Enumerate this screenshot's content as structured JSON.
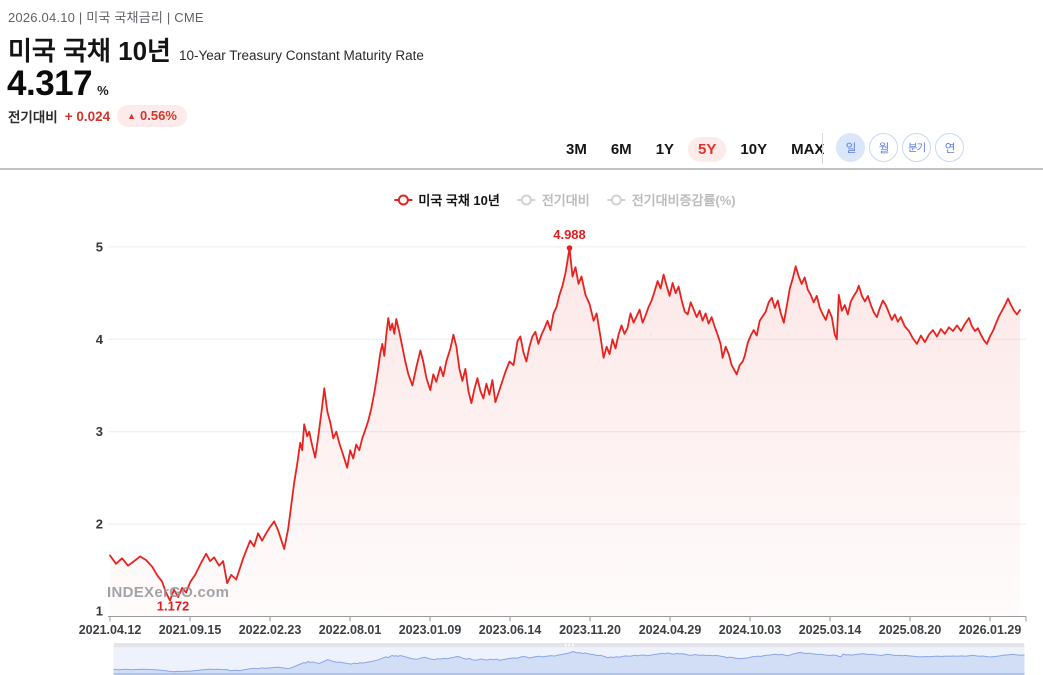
{
  "header": {
    "meta": "2026.04.10 | 미국 국채금리 | CME",
    "title": "미국 국채 10년",
    "subtitle": "10-Year Treasury Constant Maturity Rate",
    "value": "4.317",
    "unit": "%",
    "change_label": "전기대비",
    "change_delta": "+ 0.024",
    "up_arrow": "▲",
    "change_pct": "0.56%"
  },
  "toolbar": {
    "ranges": [
      "3M",
      "6M",
      "1Y",
      "5Y",
      "10Y",
      "MAX"
    ],
    "active_range": "5Y",
    "periods": [
      "일",
      "월",
      "분기",
      "연"
    ],
    "active_period": "일"
  },
  "legend": [
    {
      "label": "미국 국채 10년",
      "color": "#e8231f",
      "active": true
    },
    {
      "label": "전기대비",
      "color": "#d2d2d2",
      "active": false
    },
    {
      "label": "전기대비증감률(%)",
      "color": "#d2d2d2",
      "active": false
    }
  ],
  "watermark": "INDEXerGO.com",
  "chart_data": {
    "type": "line",
    "title": "미국 국채 10년 (10-Year Treasury Constant Maturity Rate), 5Y daily",
    "ylabel": "%",
    "ylim": [
      1,
      5.2
    ],
    "y_ticks": [
      1,
      2,
      3,
      4,
      5
    ],
    "grid": true,
    "legend_position": "top-center",
    "x_tick_labels": [
      "2021.04.12",
      "2021.09.15",
      "2022.02.23",
      "2022.08.01",
      "2023.01.09",
      "2023.06.14",
      "2023.11.20",
      "2024.04.29",
      "2024.10.03",
      "2025.03.14",
      "2025.08.20",
      "2026.01.29"
    ],
    "annotations": {
      "max": {
        "label": "4.988",
        "f": 0.5044,
        "v": 4.988,
        "dot": true
      },
      "min": {
        "label": "1.172",
        "f": 0.0659,
        "v": 1.172,
        "dot": false
      }
    },
    "line_color": "#e8231f",
    "area_top_color": "rgba(232,35,31,0.11)",
    "area_bottom_color": "rgba(232,35,31,0.015)",
    "series": [
      {
        "name": "미국 국채 10년",
        "points": [
          [
            0.0,
            1.66
          ],
          [
            0.0066,
            1.57
          ],
          [
            0.0132,
            1.63
          ],
          [
            0.0198,
            1.55
          ],
          [
            0.0264,
            1.6
          ],
          [
            0.033,
            1.65
          ],
          [
            0.0396,
            1.61
          ],
          [
            0.0462,
            1.54
          ],
          [
            0.0516,
            1.45
          ],
          [
            0.0571,
            1.38
          ],
          [
            0.0615,
            1.26
          ],
          [
            0.0659,
            1.172
          ],
          [
            0.0703,
            1.29
          ],
          [
            0.0747,
            1.21
          ],
          [
            0.0791,
            1.31
          ],
          [
            0.0835,
            1.26
          ],
          [
            0.0879,
            1.37
          ],
          [
            0.0934,
            1.45
          ],
          [
            0.1,
            1.58
          ],
          [
            0.1055,
            1.68
          ],
          [
            0.1099,
            1.6
          ],
          [
            0.1143,
            1.64
          ],
          [
            0.1198,
            1.55
          ],
          [
            0.1242,
            1.6
          ],
          [
            0.1286,
            1.36
          ],
          [
            0.133,
            1.45
          ],
          [
            0.1385,
            1.4
          ],
          [
            0.1462,
            1.63
          ],
          [
            0.1538,
            1.82
          ],
          [
            0.1582,
            1.76
          ],
          [
            0.1626,
            1.9
          ],
          [
            0.167,
            1.82
          ],
          [
            0.1714,
            1.9
          ],
          [
            0.1758,
            1.97
          ],
          [
            0.1802,
            2.03
          ],
          [
            0.1846,
            1.93
          ],
          [
            0.1879,
            1.83
          ],
          [
            0.1912,
            1.73
          ],
          [
            0.1956,
            1.95
          ],
          [
            0.1989,
            2.2
          ],
          [
            0.2022,
            2.45
          ],
          [
            0.2055,
            2.65
          ],
          [
            0.2088,
            2.88
          ],
          [
            0.211,
            2.8
          ],
          [
            0.2132,
            3.08
          ],
          [
            0.2165,
            2.95
          ],
          [
            0.2187,
            3.0
          ],
          [
            0.222,
            2.85
          ],
          [
            0.2253,
            2.72
          ],
          [
            0.2286,
            2.95
          ],
          [
            0.2319,
            3.2
          ],
          [
            0.2352,
            3.47
          ],
          [
            0.2385,
            3.22
          ],
          [
            0.2418,
            3.1
          ],
          [
            0.2451,
            2.93
          ],
          [
            0.2484,
            3.0
          ],
          [
            0.2516,
            2.88
          ],
          [
            0.2549,
            2.78
          ],
          [
            0.2582,
            2.68
          ],
          [
            0.2604,
            2.61
          ],
          [
            0.2637,
            2.8
          ],
          [
            0.267,
            2.71
          ],
          [
            0.2703,
            2.86
          ],
          [
            0.2736,
            2.8
          ],
          [
            0.2769,
            2.93
          ],
          [
            0.2802,
            3.02
          ],
          [
            0.2835,
            3.12
          ],
          [
            0.2868,
            3.25
          ],
          [
            0.2901,
            3.42
          ],
          [
            0.2934,
            3.62
          ],
          [
            0.2967,
            3.85
          ],
          [
            0.2989,
            3.95
          ],
          [
            0.3011,
            3.82
          ],
          [
            0.3033,
            4.05
          ],
          [
            0.3055,
            4.23
          ],
          [
            0.3077,
            4.1
          ],
          [
            0.3099,
            4.17
          ],
          [
            0.3121,
            4.06
          ],
          [
            0.3143,
            4.22
          ],
          [
            0.3176,
            4.08
          ],
          [
            0.3209,
            3.92
          ],
          [
            0.3242,
            3.76
          ],
          [
            0.3275,
            3.62
          ],
          [
            0.3319,
            3.5
          ],
          [
            0.3363,
            3.7
          ],
          [
            0.3407,
            3.88
          ],
          [
            0.344,
            3.75
          ],
          [
            0.3473,
            3.58
          ],
          [
            0.3516,
            3.45
          ],
          [
            0.3549,
            3.62
          ],
          [
            0.3582,
            3.54
          ],
          [
            0.3626,
            3.7
          ],
          [
            0.3659,
            3.6
          ],
          [
            0.3692,
            3.76
          ],
          [
            0.3736,
            3.9
          ],
          [
            0.3769,
            4.05
          ],
          [
            0.3802,
            3.92
          ],
          [
            0.3835,
            3.68
          ],
          [
            0.3868,
            3.55
          ],
          [
            0.3901,
            3.68
          ],
          [
            0.3934,
            3.44
          ],
          [
            0.3967,
            3.31
          ],
          [
            0.4,
            3.46
          ],
          [
            0.4033,
            3.58
          ],
          [
            0.4066,
            3.44
          ],
          [
            0.4099,
            3.36
          ],
          [
            0.4132,
            3.52
          ],
          [
            0.4165,
            3.4
          ],
          [
            0.4198,
            3.56
          ],
          [
            0.4231,
            3.32
          ],
          [
            0.4264,
            3.42
          ],
          [
            0.4297,
            3.52
          ],
          [
            0.4341,
            3.65
          ],
          [
            0.4385,
            3.76
          ],
          [
            0.4429,
            3.72
          ],
          [
            0.4473,
            3.98
          ],
          [
            0.4505,
            4.03
          ],
          [
            0.4538,
            3.86
          ],
          [
            0.4571,
            3.76
          ],
          [
            0.4604,
            3.92
          ],
          [
            0.4637,
            4.03
          ],
          [
            0.467,
            4.08
          ],
          [
            0.4703,
            3.95
          ],
          [
            0.4736,
            4.05
          ],
          [
            0.4769,
            4.12
          ],
          [
            0.4802,
            4.2
          ],
          [
            0.4835,
            4.1
          ],
          [
            0.4868,
            4.28
          ],
          [
            0.4901,
            4.35
          ],
          [
            0.4934,
            4.48
          ],
          [
            0.4967,
            4.58
          ],
          [
            0.5,
            4.72
          ],
          [
            0.5022,
            4.85
          ],
          [
            0.5044,
            4.988
          ],
          [
            0.5077,
            4.68
          ],
          [
            0.511,
            4.78
          ],
          [
            0.5143,
            4.6
          ],
          [
            0.5176,
            4.68
          ],
          [
            0.522,
            4.48
          ],
          [
            0.5264,
            4.38
          ],
          [
            0.5308,
            4.2
          ],
          [
            0.5341,
            4.28
          ],
          [
            0.5385,
            4.02
          ],
          [
            0.5418,
            3.8
          ],
          [
            0.5451,
            3.92
          ],
          [
            0.5484,
            3.84
          ],
          [
            0.5516,
            4.0
          ],
          [
            0.5549,
            3.9
          ],
          [
            0.5582,
            4.05
          ],
          [
            0.5615,
            4.15
          ],
          [
            0.5648,
            4.06
          ],
          [
            0.5681,
            4.12
          ],
          [
            0.5714,
            4.28
          ],
          [
            0.5747,
            4.18
          ],
          [
            0.578,
            4.25
          ],
          [
            0.5813,
            4.32
          ],
          [
            0.5846,
            4.18
          ],
          [
            0.5879,
            4.26
          ],
          [
            0.5912,
            4.35
          ],
          [
            0.5945,
            4.42
          ],
          [
            0.5978,
            4.52
          ],
          [
            0.6011,
            4.63
          ],
          [
            0.6044,
            4.55
          ],
          [
            0.6077,
            4.7
          ],
          [
            0.611,
            4.58
          ],
          [
            0.6143,
            4.47
          ],
          [
            0.6176,
            4.61
          ],
          [
            0.6209,
            4.5
          ],
          [
            0.6242,
            4.57
          ],
          [
            0.6275,
            4.42
          ],
          [
            0.6308,
            4.3
          ],
          [
            0.6341,
            4.27
          ],
          [
            0.6374,
            4.4
          ],
          [
            0.6407,
            4.32
          ],
          [
            0.644,
            4.24
          ],
          [
            0.6473,
            4.31
          ],
          [
            0.6505,
            4.2
          ],
          [
            0.6538,
            4.28
          ],
          [
            0.6571,
            4.17
          ],
          [
            0.6604,
            4.24
          ],
          [
            0.6637,
            4.14
          ],
          [
            0.667,
            4.05
          ],
          [
            0.6703,
            3.95
          ],
          [
            0.6725,
            3.8
          ],
          [
            0.6758,
            3.92
          ],
          [
            0.6791,
            3.84
          ],
          [
            0.6824,
            3.72
          ],
          [
            0.6857,
            3.66
          ],
          [
            0.6879,
            3.62
          ],
          [
            0.6912,
            3.72
          ],
          [
            0.6945,
            3.76
          ],
          [
            0.6967,
            3.82
          ],
          [
            0.7,
            3.96
          ],
          [
            0.7033,
            4.04
          ],
          [
            0.7066,
            4.1
          ],
          [
            0.7099,
            4.04
          ],
          [
            0.7132,
            4.2
          ],
          [
            0.7165,
            4.25
          ],
          [
            0.7198,
            4.3
          ],
          [
            0.7231,
            4.4
          ],
          [
            0.7264,
            4.45
          ],
          [
            0.7297,
            4.34
          ],
          [
            0.733,
            4.42
          ],
          [
            0.7363,
            4.28
          ],
          [
            0.7396,
            4.18
          ],
          [
            0.7429,
            4.36
          ],
          [
            0.7462,
            4.55
          ],
          [
            0.7495,
            4.66
          ],
          [
            0.7527,
            4.79
          ],
          [
            0.756,
            4.68
          ],
          [
            0.7593,
            4.6
          ],
          [
            0.7626,
            4.67
          ],
          [
            0.7659,
            4.54
          ],
          [
            0.7692,
            4.48
          ],
          [
            0.7725,
            4.4
          ],
          [
            0.7758,
            4.47
          ],
          [
            0.7791,
            4.34
          ],
          [
            0.7824,
            4.27
          ],
          [
            0.7857,
            4.21
          ],
          [
            0.789,
            4.32
          ],
          [
            0.7923,
            4.24
          ],
          [
            0.7956,
            4.05
          ],
          [
            0.7978,
            4.0
          ],
          [
            0.8,
            4.48
          ],
          [
            0.8033,
            4.31
          ],
          [
            0.8066,
            4.37
          ],
          [
            0.8099,
            4.27
          ],
          [
            0.8132,
            4.41
          ],
          [
            0.8165,
            4.47
          ],
          [
            0.8198,
            4.52
          ],
          [
            0.822,
            4.58
          ],
          [
            0.8253,
            4.47
          ],
          [
            0.8286,
            4.41
          ],
          [
            0.8319,
            4.47
          ],
          [
            0.8352,
            4.37
          ],
          [
            0.8385,
            4.29
          ],
          [
            0.8418,
            4.24
          ],
          [
            0.8451,
            4.34
          ],
          [
            0.8484,
            4.42
          ],
          [
            0.8516,
            4.37
          ],
          [
            0.8549,
            4.29
          ],
          [
            0.8582,
            4.21
          ],
          [
            0.8615,
            4.27
          ],
          [
            0.8648,
            4.19
          ],
          [
            0.8681,
            4.24
          ],
          [
            0.8725,
            4.14
          ],
          [
            0.8769,
            4.09
          ],
          [
            0.8813,
            4.01
          ],
          [
            0.8857,
            3.95
          ],
          [
            0.8901,
            4.04
          ],
          [
            0.8945,
            3.97
          ],
          [
            0.8989,
            4.05
          ],
          [
            0.9033,
            4.1
          ],
          [
            0.9077,
            4.03
          ],
          [
            0.9121,
            4.11
          ],
          [
            0.9165,
            4.06
          ],
          [
            0.9209,
            4.13
          ],
          [
            0.9253,
            4.09
          ],
          [
            0.9297,
            4.15
          ],
          [
            0.9341,
            4.09
          ],
          [
            0.9385,
            4.17
          ],
          [
            0.9429,
            4.23
          ],
          [
            0.9462,
            4.14
          ],
          [
            0.9495,
            4.09
          ],
          [
            0.9527,
            4.12
          ],
          [
            0.956,
            4.05
          ],
          [
            0.9593,
            3.99
          ],
          [
            0.9626,
            3.95
          ],
          [
            0.9659,
            4.03
          ],
          [
            0.9692,
            4.09
          ],
          [
            0.9725,
            4.17
          ],
          [
            0.9758,
            4.25
          ],
          [
            0.9791,
            4.31
          ],
          [
            0.9824,
            4.37
          ],
          [
            0.9857,
            4.44
          ],
          [
            0.989,
            4.37
          ],
          [
            0.9923,
            4.31
          ],
          [
            0.9956,
            4.27
          ],
          [
            0.9989,
            4.317
          ]
        ]
      }
    ]
  },
  "navigator": {
    "bg_color": "#eef2fc",
    "strip_color": "#e3e3e9",
    "area_color": "#cbd8f3",
    "line_color": "#8aa6e6",
    "baseline_color": "#9fb4e9"
  }
}
